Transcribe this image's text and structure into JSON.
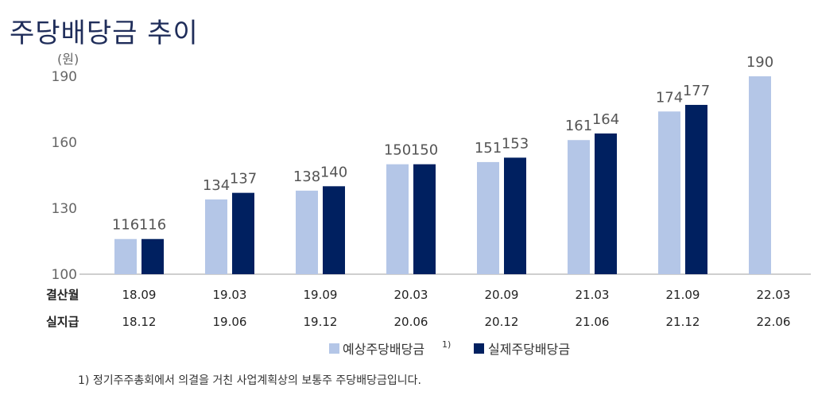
{
  "title": "주당배당금 추이",
  "footnote": "1) 정기주주총회에서 의결을 거친 사업계획상의 보통주 주당배당금입니다.",
  "chart_data": {
    "type": "bar",
    "unit": "(원)",
    "ylim": [
      100,
      190
    ],
    "yticks": [
      100,
      130,
      160,
      190
    ],
    "row_headers": [
      "결산월",
      "실지급"
    ],
    "categories": [
      "18.09",
      "19.03",
      "19.09",
      "20.03",
      "20.09",
      "21.03",
      "21.09",
      "22.03"
    ],
    "pay_dates": [
      "18.12",
      "19.06",
      "19.12",
      "20.06",
      "20.12",
      "21.06",
      "21.12",
      "22.06"
    ],
    "series": [
      {
        "name": "예상주당배당금",
        "superscript": "1)",
        "color": "#b4c6e7",
        "values": [
          116,
          134,
          138,
          150,
          151,
          161,
          174,
          190
        ]
      },
      {
        "name": "실제주당배당금",
        "color": "#002060",
        "values": [
          116,
          137,
          140,
          150,
          153,
          164,
          177,
          null
        ]
      }
    ],
    "legend_position": "bottom",
    "grid": false
  }
}
